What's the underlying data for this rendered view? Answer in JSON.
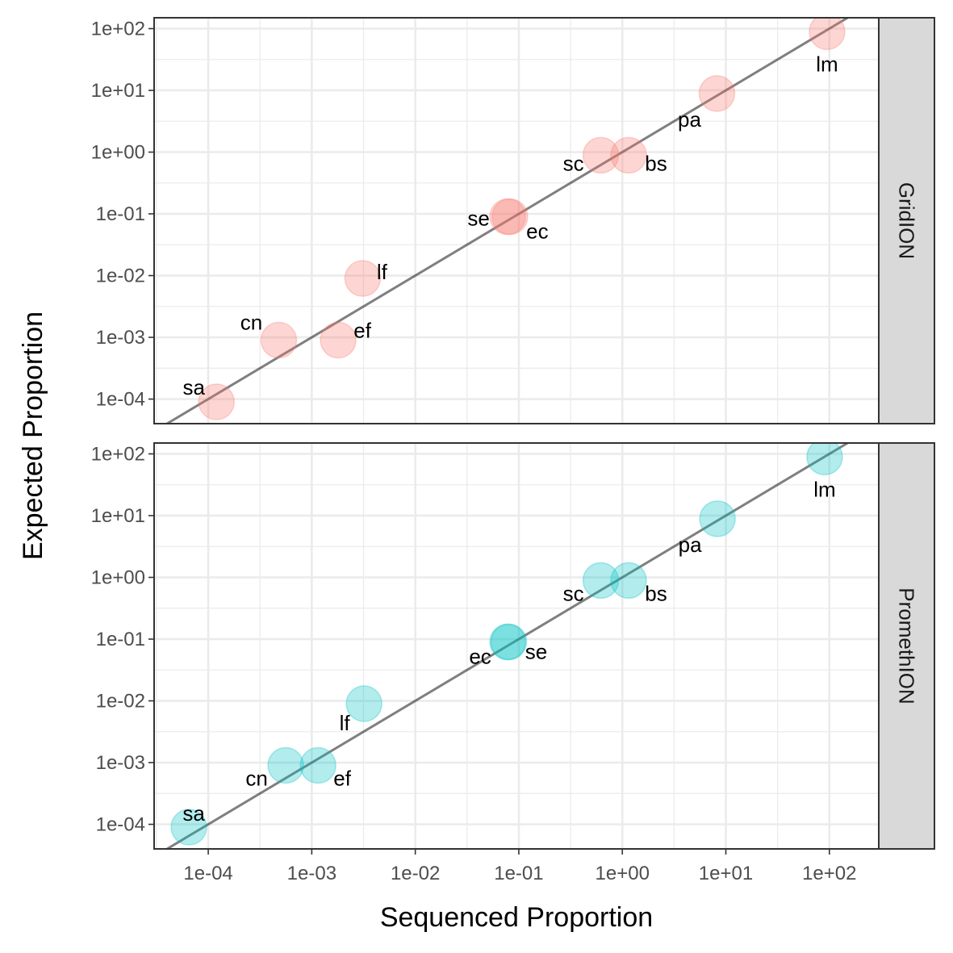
{
  "chart_data": {
    "type": "scatter",
    "xlabel": "Sequenced Proportion",
    "ylabel": "Expected Proportion",
    "x_scale": "log10",
    "y_scale": "log10",
    "xlim": [
      3e-05,
      300
    ],
    "ylim": [
      4e-05,
      150
    ],
    "x_ticks": [
      "1e-04",
      "1e-03",
      "1e-02",
      "1e-01",
      "1e+00",
      "1e+01",
      "1e+02"
    ],
    "y_ticks": [
      "1e-04",
      "1e-03",
      "1e-02",
      "1e-01",
      "1e+00",
      "1e+01",
      "1e+02"
    ],
    "grid": true,
    "reference_line": "y = x",
    "legend": "none",
    "panels": [
      {
        "name": "GridION",
        "color": "#F8766D",
        "points": [
          {
            "label": "sa",
            "x": 0.00012,
            "y": 9e-05
          },
          {
            "label": "cn",
            "x": 0.00048,
            "y": 0.0009
          },
          {
            "label": "ef",
            "x": 0.0018,
            "y": 0.0009
          },
          {
            "label": "lf",
            "x": 0.0031,
            "y": 0.009
          },
          {
            "label": "se",
            "x": 0.078,
            "y": 0.09
          },
          {
            "label": "ec",
            "x": 0.082,
            "y": 0.09
          },
          {
            "label": "sc",
            "x": 0.62,
            "y": 0.89
          },
          {
            "label": "bs",
            "x": 1.15,
            "y": 0.89
          },
          {
            "label": "pa",
            "x": 8.2,
            "y": 8.9
          },
          {
            "label": "lm",
            "x": 95,
            "y": 89
          }
        ]
      },
      {
        "name": "PromethION",
        "color": "#00BFC4",
        "points": [
          {
            "label": "sa",
            "x": 6.5e-05,
            "y": 9e-05
          },
          {
            "label": "cn",
            "x": 0.00056,
            "y": 0.0009
          },
          {
            "label": "ef",
            "x": 0.00115,
            "y": 0.0009
          },
          {
            "label": "lf",
            "x": 0.0032,
            "y": 0.009
          },
          {
            "label": "ec",
            "x": 0.078,
            "y": 0.09
          },
          {
            "label": "se",
            "x": 0.08,
            "y": 0.09
          },
          {
            "label": "sc",
            "x": 0.62,
            "y": 0.89
          },
          {
            "label": "bs",
            "x": 1.15,
            "y": 0.89
          },
          {
            "label": "pa",
            "x": 8.3,
            "y": 8.9
          },
          {
            "label": "lm",
            "x": 90,
            "y": 89
          }
        ]
      }
    ]
  }
}
